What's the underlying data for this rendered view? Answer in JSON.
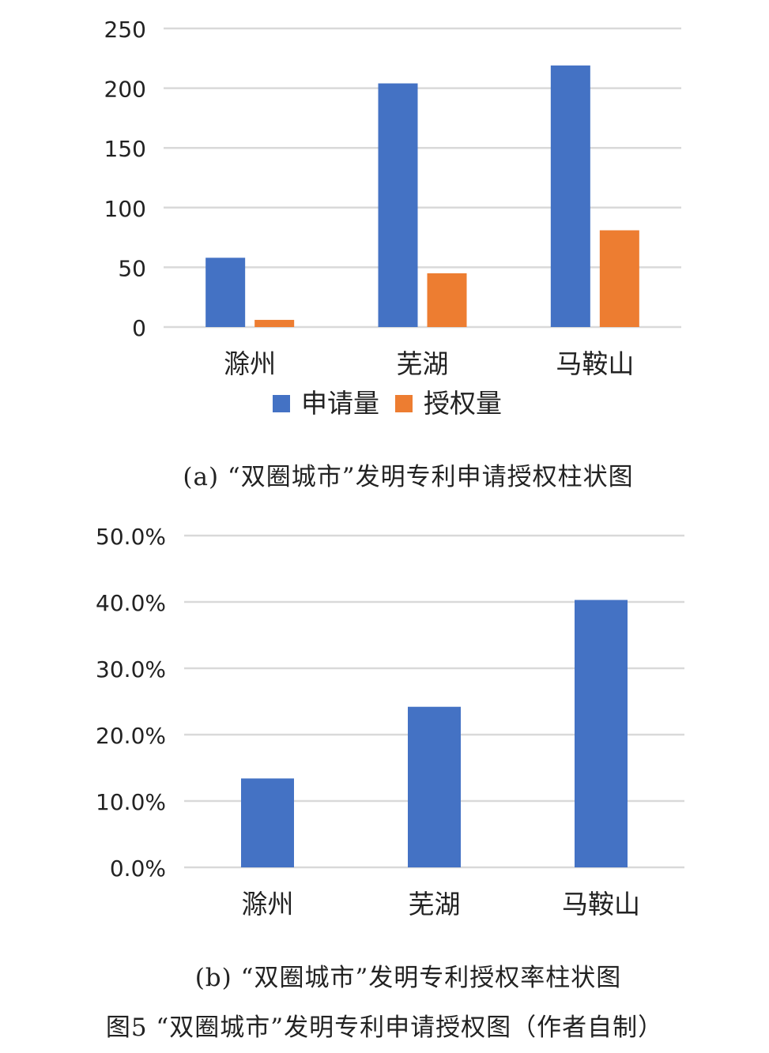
{
  "chart_data": [
    {
      "type": "bar",
      "categories": [
        "滁州",
        "芜湖",
        "马鞍山"
      ],
      "series": [
        {
          "name": "申请量",
          "color": "#4472C4",
          "values": [
            58,
            204,
            219
          ]
        },
        {
          "name": "授权量",
          "color": "#ED7D31",
          "values": [
            6,
            45,
            81
          ]
        }
      ],
      "ylim": [
        0,
        250
      ],
      "yticks": [
        "0",
        "50",
        "100",
        "150",
        "200",
        "250"
      ],
      "grid": true,
      "legend_position": "bottom",
      "title": "(a) “双圈城市”发明专利申请授权柱状图"
    },
    {
      "type": "bar",
      "categories": [
        "滁州",
        "芜湖",
        "马鞍山"
      ],
      "series": [
        {
          "color": "#4472C4",
          "values": [
            13.4,
            24.2,
            40.3
          ]
        }
      ],
      "ylim": [
        0,
        50
      ],
      "yticks": [
        "0.0%",
        "10.0%",
        "20.0%",
        "30.0%",
        "40.0%",
        "50.0%"
      ],
      "grid": true,
      "title": "(b) “双圈城市”发明专利授权率柱状图"
    }
  ],
  "figure_caption": "图5 “双圈城市”发明专利申请授权图（作者自制）"
}
